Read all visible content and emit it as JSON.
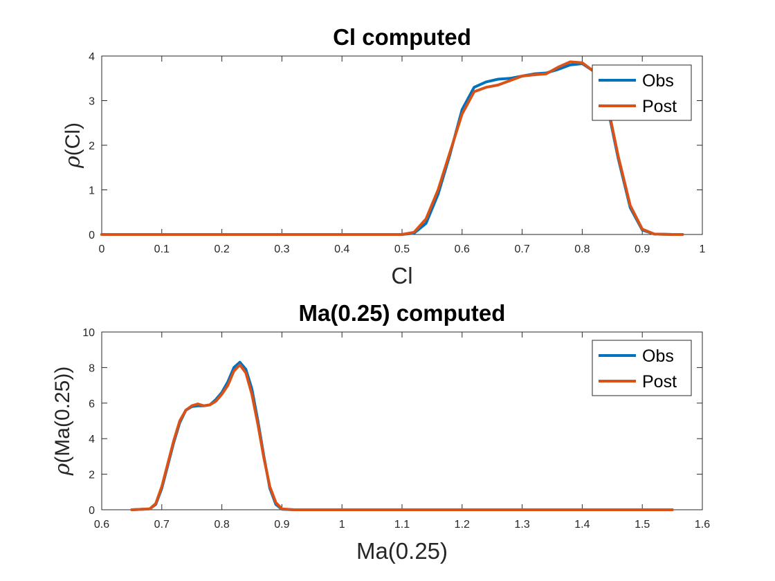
{
  "chart_data": [
    {
      "type": "line",
      "title": "Cl computed",
      "xlabel": "Cl",
      "ylabel": "(Cl)",
      "ylabel_symbol": "ρ",
      "xlim": [
        0,
        1
      ],
      "ylim": [
        0,
        4
      ],
      "xticks": [
        "0",
        "0.1",
        "0.2",
        "0.3",
        "0.4",
        "0.5",
        "0.6",
        "0.7",
        "0.8",
        "0.9",
        "1"
      ],
      "xtick_values": [
        0,
        0.1,
        0.2,
        0.3,
        0.4,
        0.5,
        0.6,
        0.7,
        0.8,
        0.9,
        1
      ],
      "yticks": [
        "0",
        "1",
        "2",
        "3",
        "4"
      ],
      "ytick_values": [
        0,
        1,
        2,
        3,
        4
      ],
      "grid": false,
      "legend_position": "top-right",
      "series": [
        {
          "name": "Obs",
          "color": "#0072BD",
          "x": [
            0,
            0.5,
            0.52,
            0.54,
            0.56,
            0.58,
            0.6,
            0.62,
            0.64,
            0.66,
            0.68,
            0.7,
            0.72,
            0.74,
            0.76,
            0.78,
            0.8,
            0.82,
            0.84,
            0.86,
            0.88,
            0.9,
            0.92,
            0.95,
            0.967
          ],
          "y": [
            0,
            0,
            0.03,
            0.25,
            0.9,
            1.8,
            2.8,
            3.3,
            3.42,
            3.48,
            3.5,
            3.55,
            3.6,
            3.62,
            3.7,
            3.8,
            3.83,
            3.65,
            3.0,
            1.7,
            0.6,
            0.1,
            0.01,
            0,
            0
          ]
        },
        {
          "name": "Post",
          "color": "#D95319",
          "x": [
            0,
            0.5,
            0.52,
            0.54,
            0.56,
            0.58,
            0.6,
            0.62,
            0.64,
            0.66,
            0.68,
            0.7,
            0.72,
            0.74,
            0.76,
            0.78,
            0.8,
            0.82,
            0.84,
            0.86,
            0.88,
            0.9,
            0.92,
            0.95,
            0.967
          ],
          "y": [
            0,
            0,
            0.05,
            0.35,
            1.0,
            1.85,
            2.7,
            3.2,
            3.3,
            3.35,
            3.45,
            3.55,
            3.58,
            3.6,
            3.75,
            3.87,
            3.85,
            3.65,
            3.05,
            1.75,
            0.65,
            0.12,
            0.01,
            0,
            0
          ]
        }
      ]
    },
    {
      "type": "line",
      "title": "Ma(0.25) computed",
      "xlabel": "Ma(0.25)",
      "ylabel": "(Ma(0.25))",
      "ylabel_symbol": "ρ",
      "xlim": [
        0.6,
        1.6
      ],
      "ylim": [
        0,
        10
      ],
      "xticks": [
        "0.6",
        "0.7",
        "0.8",
        "0.9",
        "1",
        "1.1",
        "1.2",
        "1.3",
        "1.4",
        "1.5",
        "1.6"
      ],
      "xtick_values": [
        0.6,
        0.7,
        0.8,
        0.9,
        1.0,
        1.1,
        1.2,
        1.3,
        1.4,
        1.5,
        1.6
      ],
      "yticks": [
        "0",
        "2",
        "4",
        "6",
        "8",
        "10"
      ],
      "ytick_values": [
        0,
        2,
        4,
        6,
        8,
        10
      ],
      "grid": false,
      "legend_position": "top-right",
      "series": [
        {
          "name": "Obs",
          "color": "#0072BD",
          "x": [
            0.65,
            0.68,
            0.69,
            0.7,
            0.71,
            0.72,
            0.73,
            0.74,
            0.75,
            0.76,
            0.77,
            0.78,
            0.79,
            0.8,
            0.81,
            0.82,
            0.83,
            0.84,
            0.85,
            0.86,
            0.87,
            0.88,
            0.89,
            0.9,
            0.92,
            1.0,
            1.55
          ],
          "y": [
            0,
            0.05,
            0.3,
            1.2,
            2.5,
            3.8,
            4.9,
            5.6,
            5.8,
            5.85,
            5.85,
            5.9,
            6.2,
            6.6,
            7.2,
            8.0,
            8.3,
            7.9,
            6.8,
            5.0,
            3.0,
            1.2,
            0.3,
            0.03,
            0,
            0,
            0
          ]
        },
        {
          "name": "Post",
          "color": "#D95319",
          "x": [
            0.65,
            0.68,
            0.69,
            0.7,
            0.71,
            0.72,
            0.73,
            0.74,
            0.75,
            0.76,
            0.77,
            0.78,
            0.79,
            0.8,
            0.81,
            0.82,
            0.83,
            0.84,
            0.85,
            0.86,
            0.87,
            0.88,
            0.89,
            0.9,
            0.92,
            1.0,
            1.55
          ],
          "y": [
            0,
            0.05,
            0.35,
            1.3,
            2.6,
            3.9,
            5.0,
            5.6,
            5.85,
            5.95,
            5.85,
            5.9,
            6.1,
            6.5,
            7.0,
            7.8,
            8.15,
            7.7,
            6.5,
            4.8,
            2.9,
            1.3,
            0.4,
            0.05,
            0,
            0,
            0
          ]
        }
      ]
    }
  ]
}
